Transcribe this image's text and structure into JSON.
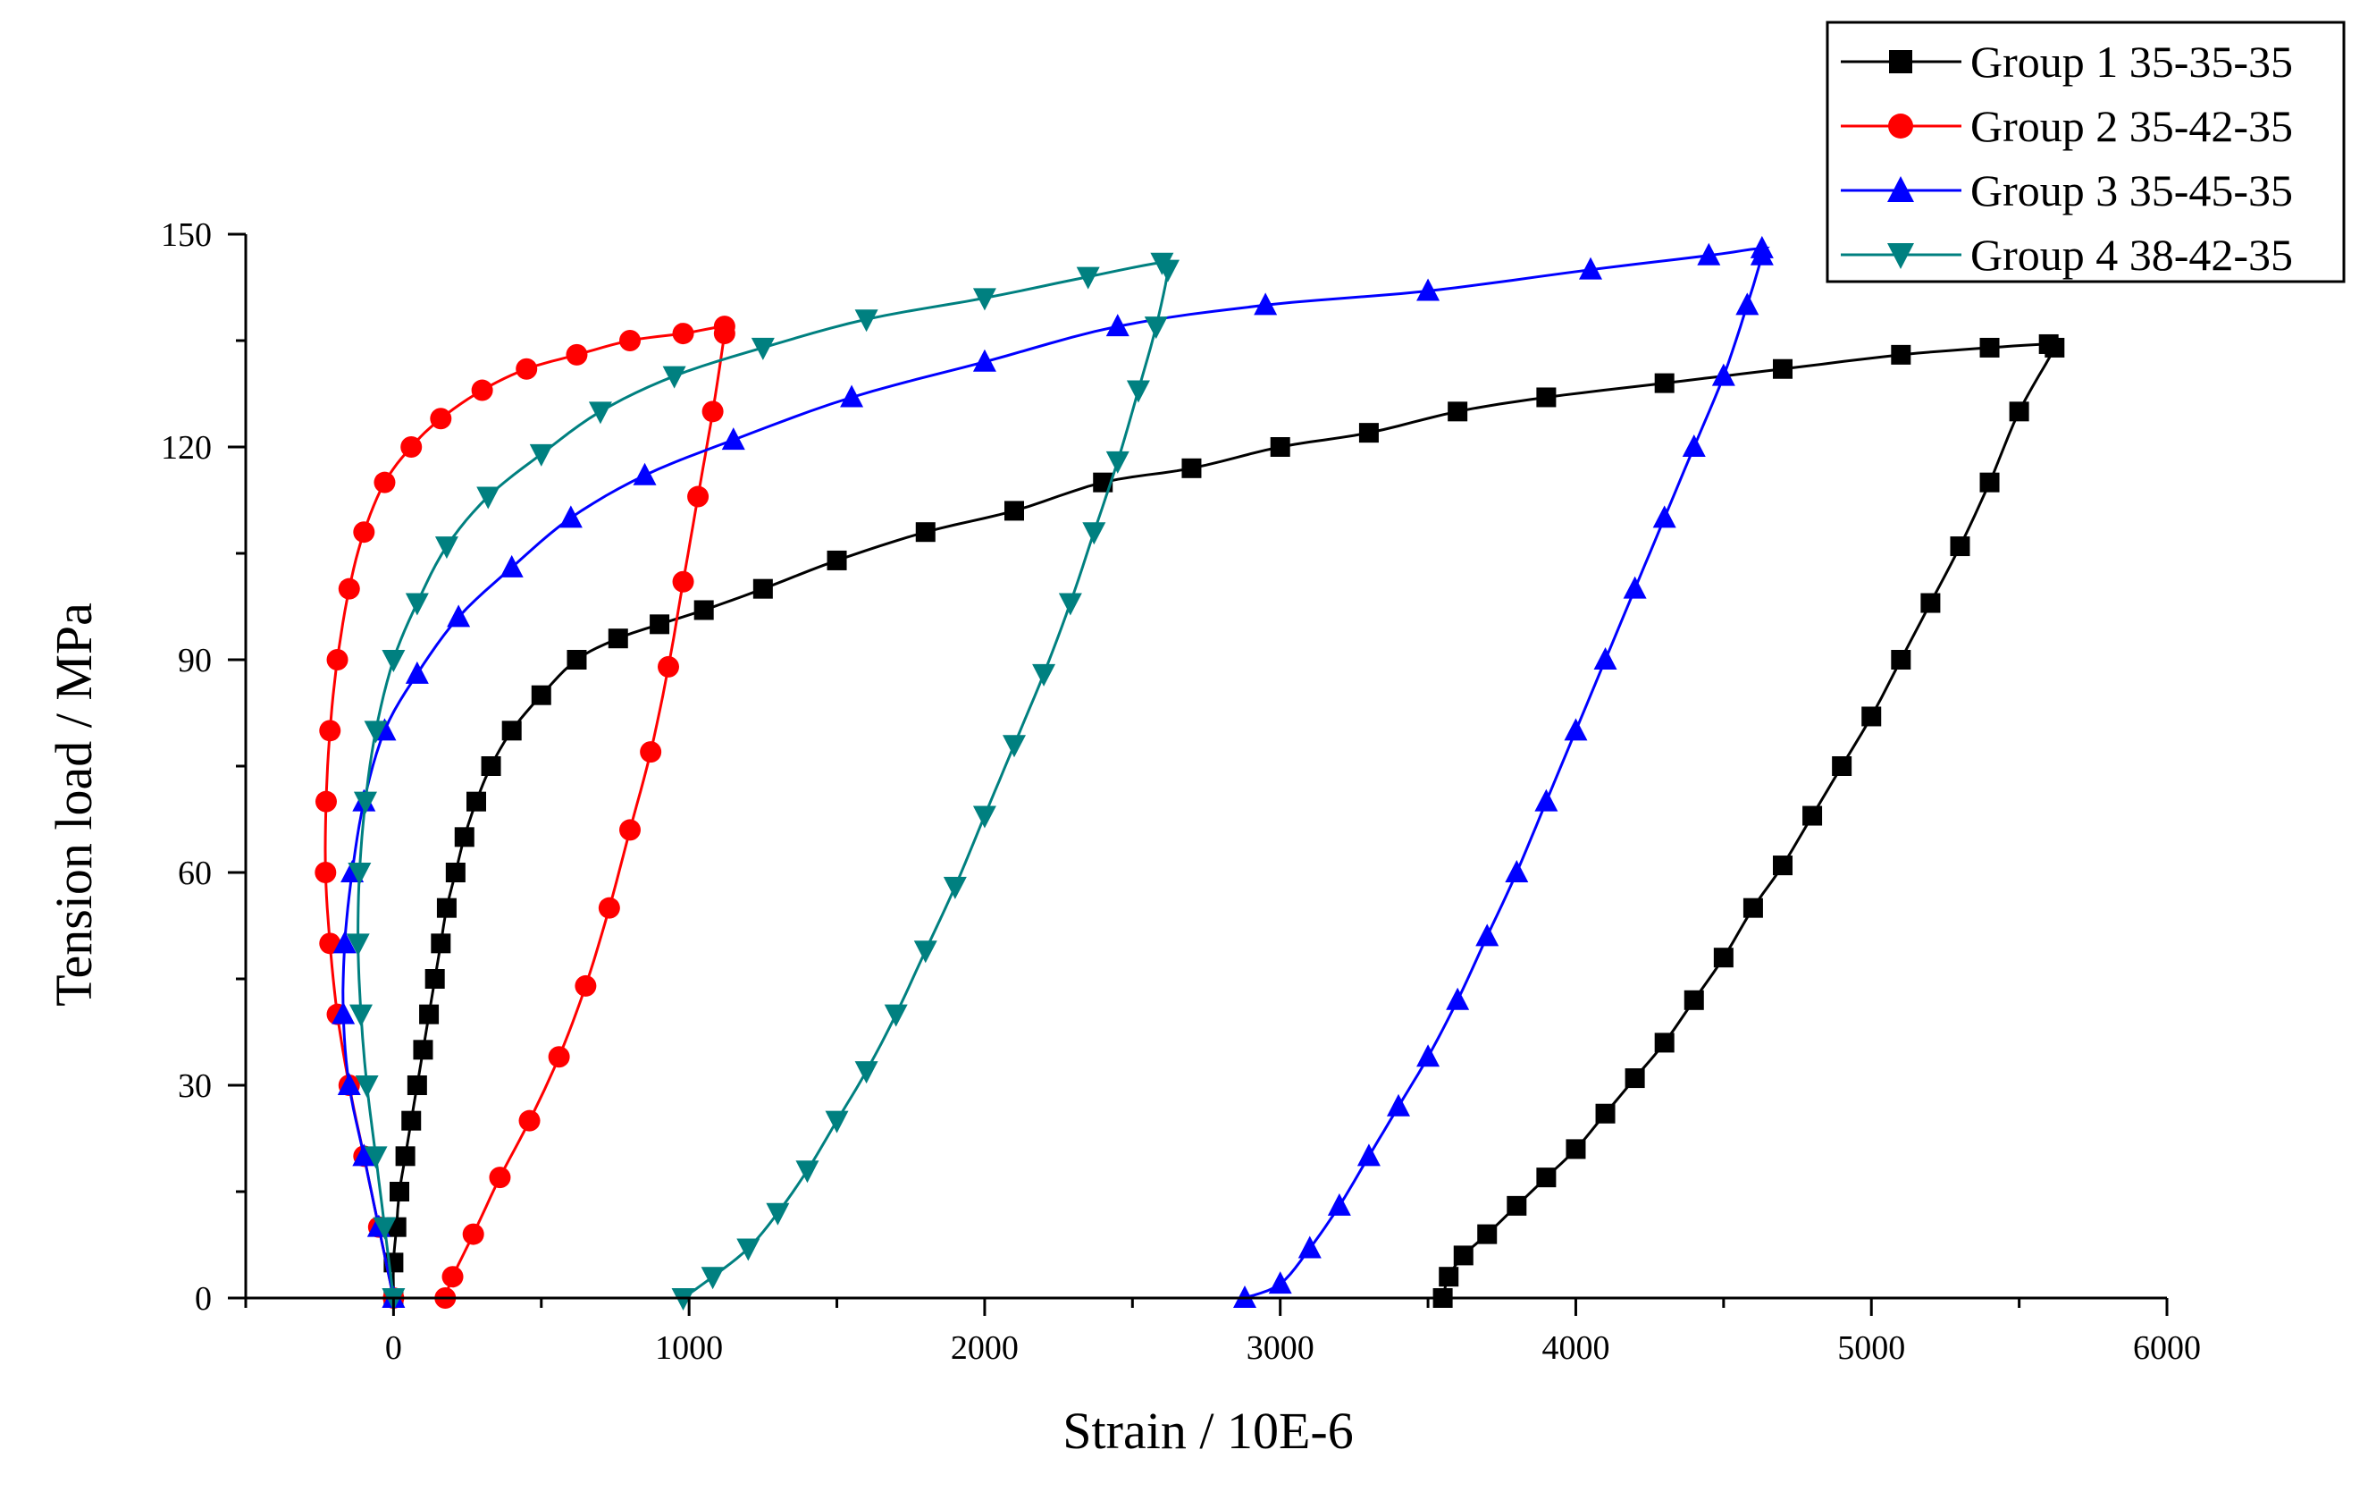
{
  "chart_data": {
    "type": "line",
    "title": "",
    "xlabel": "Strain / 10E-6",
    "ylabel": "Tension load / MPa",
    "xlim": [
      -500,
      6000
    ],
    "ylim": [
      0,
      150
    ],
    "xticks": [
      0,
      1000,
      2000,
      3000,
      4000,
      5000,
      6000
    ],
    "yticks": [
      0,
      30,
      60,
      90,
      120,
      150
    ],
    "grid": false,
    "legend_position": "top-right",
    "series": [
      {
        "name": "Group 1 35-35-35",
        "color": "#000000",
        "marker": "square",
        "loading": [
          [
            0,
            0
          ],
          [
            0,
            5
          ],
          [
            10,
            10
          ],
          [
            20,
            15
          ],
          [
            40,
            20
          ],
          [
            60,
            25
          ],
          [
            80,
            30
          ],
          [
            100,
            35
          ],
          [
            120,
            40
          ],
          [
            140,
            45
          ],
          [
            160,
            50
          ],
          [
            180,
            55
          ],
          [
            210,
            60
          ],
          [
            240,
            65
          ],
          [
            280,
            70
          ],
          [
            330,
            75
          ],
          [
            400,
            80
          ],
          [
            500,
            85
          ],
          [
            620,
            90
          ],
          [
            760,
            93
          ],
          [
            900,
            95
          ],
          [
            1050,
            97
          ],
          [
            1250,
            100
          ],
          [
            1500,
            104
          ],
          [
            1800,
            108
          ],
          [
            2100,
            111
          ],
          [
            2400,
            115
          ],
          [
            2700,
            117
          ],
          [
            3000,
            120
          ],
          [
            3300,
            122
          ],
          [
            3600,
            125
          ],
          [
            3900,
            127
          ],
          [
            4300,
            129
          ],
          [
            4700,
            131
          ],
          [
            5100,
            133
          ],
          [
            5400,
            134
          ],
          [
            5600,
            134.5
          ]
        ],
        "unloading": [
          [
            5620,
            134
          ],
          [
            5500,
            125
          ],
          [
            5400,
            115
          ],
          [
            5300,
            106
          ],
          [
            5200,
            98
          ],
          [
            5100,
            90
          ],
          [
            5000,
            82
          ],
          [
            4900,
            75
          ],
          [
            4800,
            68
          ],
          [
            4700,
            61
          ],
          [
            4600,
            55
          ],
          [
            4500,
            48
          ],
          [
            4400,
            42
          ],
          [
            4300,
            36
          ],
          [
            4200,
            31
          ],
          [
            4100,
            26
          ],
          [
            4000,
            21
          ],
          [
            3900,
            17
          ],
          [
            3800,
            13
          ],
          [
            3700,
            9
          ],
          [
            3620,
            6
          ],
          [
            3570,
            3
          ],
          [
            3550,
            0
          ]
        ]
      },
      {
        "name": "Group 2 35-42-35",
        "color": "#ff0000",
        "marker": "circle",
        "loading": [
          [
            0,
            0
          ],
          [
            -50,
            10
          ],
          [
            -100,
            20
          ],
          [
            -150,
            30
          ],
          [
            -190,
            40
          ],
          [
            -215,
            50
          ],
          [
            -230,
            60
          ],
          [
            -228,
            70
          ],
          [
            -215,
            80
          ],
          [
            -190,
            90
          ],
          [
            -150,
            100
          ],
          [
            -100,
            108
          ],
          [
            -30,
            115
          ],
          [
            60,
            120
          ],
          [
            160,
            124
          ],
          [
            300,
            128
          ],
          [
            450,
            131
          ],
          [
            620,
            133
          ],
          [
            800,
            135
          ],
          [
            980,
            136
          ],
          [
            1120,
            137
          ]
        ],
        "unloading": [
          [
            1120,
            136
          ],
          [
            1080,
            125
          ],
          [
            1030,
            113
          ],
          [
            980,
            101
          ],
          [
            930,
            89
          ],
          [
            870,
            77
          ],
          [
            800,
            66
          ],
          [
            730,
            55
          ],
          [
            650,
            44
          ],
          [
            560,
            34
          ],
          [
            460,
            25
          ],
          [
            360,
            17
          ],
          [
            270,
            9
          ],
          [
            200,
            3
          ],
          [
            175,
            0
          ]
        ]
      },
      {
        "name": "Group 3 35-45-35",
        "color": "#0000ff",
        "marker": "triangle-up",
        "loading": [
          [
            0,
            0
          ],
          [
            -50,
            10
          ],
          [
            -100,
            20
          ],
          [
            -150,
            30
          ],
          [
            -170,
            40
          ],
          [
            -165,
            50
          ],
          [
            -140,
            60
          ],
          [
            -100,
            70
          ],
          [
            -30,
            80
          ],
          [
            80,
            88
          ],
          [
            220,
            96
          ],
          [
            400,
            103
          ],
          [
            600,
            110
          ],
          [
            850,
            116
          ],
          [
            1150,
            121
          ],
          [
            1550,
            127
          ],
          [
            2000,
            132
          ],
          [
            2450,
            137
          ],
          [
            2950,
            140
          ],
          [
            3500,
            142
          ],
          [
            4050,
            145
          ],
          [
            4450,
            147
          ],
          [
            4630,
            148
          ]
        ],
        "unloading": [
          [
            4630,
            147
          ],
          [
            4580,
            140
          ],
          [
            4500,
            130
          ],
          [
            4400,
            120
          ],
          [
            4300,
            110
          ],
          [
            4200,
            100
          ],
          [
            4100,
            90
          ],
          [
            4000,
            80
          ],
          [
            3900,
            70
          ],
          [
            3800,
            60
          ],
          [
            3700,
            51
          ],
          [
            3600,
            42
          ],
          [
            3500,
            34
          ],
          [
            3400,
            27
          ],
          [
            3300,
            20
          ],
          [
            3200,
            13
          ],
          [
            3100,
            7
          ],
          [
            3000,
            2
          ],
          [
            2880,
            0
          ]
        ]
      },
      {
        "name": "Group 4 38-42-35",
        "color": "#008080",
        "marker": "triangle-down",
        "loading": [
          [
            0,
            0
          ],
          [
            -30,
            10
          ],
          [
            -60,
            20
          ],
          [
            -90,
            30
          ],
          [
            -110,
            40
          ],
          [
            -120,
            50
          ],
          [
            -115,
            60
          ],
          [
            -95,
            70
          ],
          [
            -60,
            80
          ],
          [
            0,
            90
          ],
          [
            80,
            98
          ],
          [
            180,
            106
          ],
          [
            320,
            113
          ],
          [
            500,
            119
          ],
          [
            700,
            125
          ],
          [
            950,
            130
          ],
          [
            1250,
            134
          ],
          [
            1600,
            138
          ],
          [
            2000,
            141
          ],
          [
            2350,
            144
          ],
          [
            2600,
            146
          ]
        ],
        "unloading": [
          [
            2620,
            145
          ],
          [
            2580,
            137
          ],
          [
            2520,
            128
          ],
          [
            2450,
            118
          ],
          [
            2370,
            108
          ],
          [
            2290,
            98
          ],
          [
            2200,
            88
          ],
          [
            2100,
            78
          ],
          [
            2000,
            68
          ],
          [
            1900,
            58
          ],
          [
            1800,
            49
          ],
          [
            1700,
            40
          ],
          [
            1600,
            32
          ],
          [
            1500,
            25
          ],
          [
            1400,
            18
          ],
          [
            1300,
            12
          ],
          [
            1200,
            7
          ],
          [
            1080,
            3
          ],
          [
            980,
            0
          ]
        ]
      }
    ]
  }
}
